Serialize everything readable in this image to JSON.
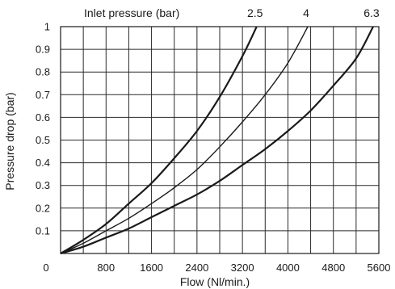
{
  "chart_data": {
    "type": "line",
    "top_label": "Inlet pressure  (bar)",
    "xlabel": "Flow (Nl/min.)",
    "ylabel": "Pressure drop (bar)",
    "xlim": [
      0,
      5600
    ],
    "ylim": [
      0,
      1
    ],
    "x_ticks": [
      0,
      800,
      1600,
      2400,
      3200,
      4000,
      4800,
      5600
    ],
    "x_tick_labels": [
      "0",
      "800",
      "1600",
      "2400",
      "3200",
      "4000",
      "4800",
      "5600"
    ],
    "y_ticks": [
      0.1,
      0.2,
      0.3,
      0.4,
      0.5,
      0.6,
      0.7,
      0.8,
      0.9,
      1.0
    ],
    "y_tick_labels": [
      "0.1",
      "0.2",
      "0.3",
      "0.4",
      "0.5",
      "0.6",
      "0.7",
      "0.8",
      "0.9",
      "1"
    ],
    "x_minor_step": 400,
    "grid": true,
    "series": [
      {
        "name": "2.5",
        "color": "#1a1a1a",
        "points": [
          [
            0,
            0
          ],
          [
            400,
            0.06
          ],
          [
            800,
            0.13
          ],
          [
            1200,
            0.22
          ],
          [
            1600,
            0.31
          ],
          [
            2000,
            0.42
          ],
          [
            2400,
            0.54
          ],
          [
            2800,
            0.69
          ],
          [
            3200,
            0.87
          ],
          [
            3450,
            1.0
          ]
        ]
      },
      {
        "name": "4",
        "color": "#1a1a1a",
        "points": [
          [
            0,
            0
          ],
          [
            400,
            0.045
          ],
          [
            800,
            0.1
          ],
          [
            1200,
            0.155
          ],
          [
            1600,
            0.22
          ],
          [
            2000,
            0.29
          ],
          [
            2400,
            0.37
          ],
          [
            2800,
            0.47
          ],
          [
            3200,
            0.58
          ],
          [
            3600,
            0.7
          ],
          [
            4000,
            0.84
          ],
          [
            4350,
            1.0
          ]
        ]
      },
      {
        "name": "6.3",
        "color": "#1a1a1a",
        "points": [
          [
            0,
            0
          ],
          [
            400,
            0.03
          ],
          [
            800,
            0.07
          ],
          [
            1200,
            0.11
          ],
          [
            1600,
            0.16
          ],
          [
            2000,
            0.21
          ],
          [
            2400,
            0.26
          ],
          [
            2800,
            0.32
          ],
          [
            3200,
            0.39
          ],
          [
            3600,
            0.46
          ],
          [
            4000,
            0.54
          ],
          [
            4400,
            0.63
          ],
          [
            4800,
            0.74
          ],
          [
            5200,
            0.86
          ],
          [
            5500,
            1.0
          ]
        ]
      }
    ]
  }
}
